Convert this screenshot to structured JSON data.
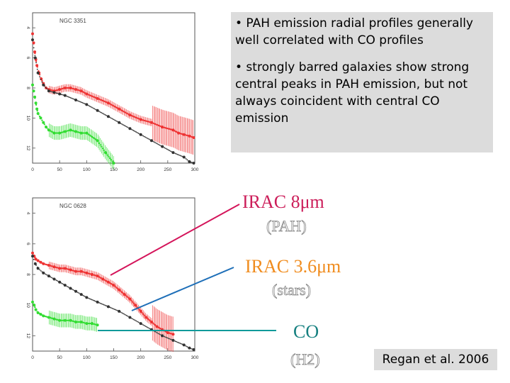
{
  "colors": {
    "pah": "#d4145a",
    "stars": "#1e6fb8",
    "co": "#109a9a",
    "irac8_text": "#cc1e5a",
    "irac36_text": "#f08c1e",
    "co_text": "#168080",
    "red_data": "#ee3333",
    "green_data": "#33dd33",
    "black_data": "#333333"
  },
  "notes": {
    "bullet1": "•  PAH emission radial profiles generally well correlated with CO profiles",
    "bullet2": "•  strongly barred galaxies show strong central peaks in PAH emission, but not always coincident with central CO emission"
  },
  "labels": {
    "irac8": "IRAC 8μm",
    "irac8_sub": "(PAH)",
    "irac36": "IRAC 3.6μm",
    "irac36_sub": "(stars)",
    "co": "CO",
    "co_sub": "(H2)"
  },
  "citation": "Regan et al. 2006",
  "chart_data": [
    {
      "type": "scatter",
      "title": "NGC 3351",
      "xlim": [
        0,
        300
      ],
      "ylim": [
        13,
        3
      ],
      "xticks": [
        "0",
        "50",
        "100",
        "150",
        "200",
        "250",
        "300"
      ],
      "yticks": [
        "4",
        "6",
        "8",
        "10",
        "12"
      ],
      "series": [
        {
          "color": "red",
          "x": [
            0,
            2,
            4,
            6,
            8,
            12,
            16,
            20,
            25,
            30,
            40,
            50,
            60,
            70,
            80,
            90,
            100,
            120,
            140,
            160,
            180,
            200,
            220,
            240,
            260,
            270,
            280,
            290,
            298
          ],
          "y": [
            4.4,
            5.0,
            5.6,
            6.1,
            6.5,
            7.0,
            7.4,
            7.7,
            8.0,
            8.1,
            8.2,
            8.1,
            8.0,
            8.0,
            8.1,
            8.2,
            8.4,
            8.7,
            9.0,
            9.4,
            9.8,
            10.1,
            10.3,
            10.6,
            10.8,
            11.0,
            11.1,
            11.2,
            11.3
          ]
        },
        {
          "color": "black",
          "x": [
            0,
            5,
            10,
            20,
            30,
            40,
            50,
            60,
            80,
            100,
            120,
            140,
            160,
            180,
            200,
            220,
            240,
            260,
            280,
            290,
            298
          ],
          "y": [
            4.8,
            6.0,
            7.0,
            7.8,
            8.2,
            8.3,
            8.4,
            8.5,
            8.8,
            9.1,
            9.5,
            9.9,
            10.3,
            10.7,
            11.1,
            11.5,
            11.9,
            12.3,
            12.6,
            12.9,
            13.0
          ]
        },
        {
          "color": "green",
          "x": [
            0,
            2,
            4,
            6,
            8,
            10,
            15,
            20,
            25,
            30,
            40,
            50,
            60,
            70,
            80,
            90,
            100,
            120,
            135,
            150
          ],
          "y": [
            7.8,
            8.2,
            8.6,
            9.0,
            9.4,
            9.7,
            10.0,
            10.3,
            10.6,
            10.8,
            11.0,
            11.0,
            10.9,
            10.8,
            10.9,
            11.0,
            11.0,
            11.5,
            12.3,
            13.0
          ]
        }
      ]
    },
    {
      "type": "scatter",
      "title": "NGC 0628",
      "xlim": [
        0,
        300
      ],
      "ylim": [
        13,
        3
      ],
      "xticks": [
        "0",
        "50",
        "100",
        "150",
        "200",
        "250",
        "300"
      ],
      "yticks": [
        "4",
        "6",
        "8",
        "10",
        "12"
      ],
      "series": [
        {
          "color": "red",
          "x": [
            0,
            3,
            6,
            10,
            15,
            20,
            30,
            40,
            50,
            60,
            70,
            80,
            90,
            100,
            110,
            120,
            130,
            140,
            150,
            160,
            170,
            180,
            190,
            200,
            210,
            220,
            230,
            240,
            250,
            260
          ],
          "y": [
            6.6,
            6.8,
            7.0,
            7.1,
            7.2,
            7.3,
            7.4,
            7.5,
            7.6,
            7.6,
            7.7,
            7.8,
            7.8,
            7.9,
            8.0,
            8.1,
            8.3,
            8.5,
            8.7,
            9.0,
            9.3,
            9.6,
            10.0,
            10.4,
            10.8,
            11.1,
            11.4,
            11.6,
            11.8,
            11.9
          ]
        },
        {
          "color": "black",
          "x": [
            0,
            5,
            10,
            20,
            30,
            40,
            50,
            60,
            70,
            80,
            90,
            100,
            120,
            140,
            160,
            180,
            200,
            220,
            240,
            260,
            280,
            290,
            298
          ],
          "y": [
            6.8,
            7.3,
            7.6,
            7.9,
            8.1,
            8.3,
            8.5,
            8.7,
            8.9,
            9.1,
            9.3,
            9.5,
            9.8,
            10.1,
            10.4,
            10.8,
            11.2,
            11.6,
            12.0,
            12.3,
            12.6,
            12.8,
            12.9
          ]
        },
        {
          "color": "green",
          "x": [
            0,
            3,
            6,
            10,
            15,
            20,
            30,
            40,
            50,
            60,
            70,
            80,
            90,
            100,
            110,
            120
          ],
          "y": [
            9.8,
            10.0,
            10.3,
            10.5,
            10.6,
            10.7,
            10.8,
            10.9,
            11.0,
            11.0,
            11.0,
            11.1,
            11.1,
            11.2,
            11.2,
            11.3
          ]
        }
      ]
    }
  ]
}
